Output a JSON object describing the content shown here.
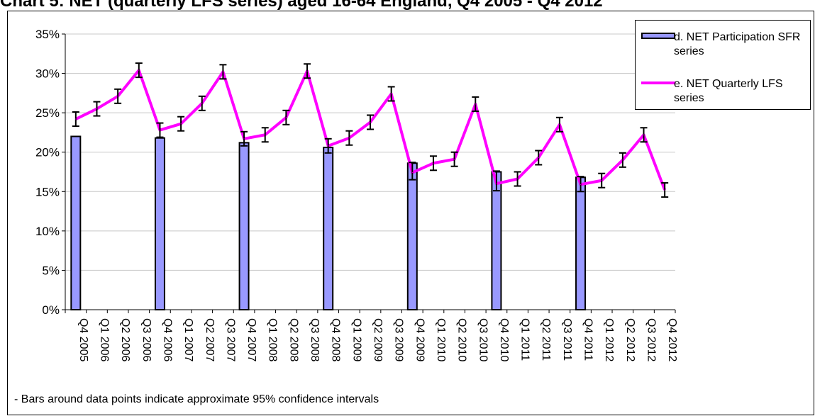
{
  "title": "Chart 5: NET (quarterly LFS series) aged 16-64 England, Q4 2005 - Q4 2012",
  "footnote": "- Bars around data points indicate approximate 95% confidence intervals",
  "legend": {
    "position": "top-right",
    "items": [
      {
        "label": "d. NET Participation SFR series",
        "color": "#9999ff",
        "kind": "bar"
      },
      {
        "label": "e. NET Quarterly LFS series",
        "color": "#ff00ff",
        "kind": "line"
      }
    ]
  },
  "chart_data": {
    "type": "bar",
    "categories": [
      "Q4 2005",
      "Q1 2006",
      "Q2 2006",
      "Q3 2006",
      "Q4 2006",
      "Q1 2007",
      "Q2 2007",
      "Q3 2007",
      "Q4 2007",
      "Q1 2008",
      "Q2 2008",
      "Q3 2008",
      "Q4 2008",
      "Q1 2009",
      "Q2 2009",
      "Q3 2009",
      "Q4 2009",
      "Q1 2010",
      "Q2 2010",
      "Q3 2010",
      "Q4 2010",
      "Q1 2011",
      "Q2 2011",
      "Q3 2011",
      "Q4 2011",
      "Q1 2012",
      "Q2 2012",
      "Q3 2012",
      "Q4 2012"
    ],
    "ylim": [
      0,
      35
    ],
    "yticks": [
      "0%",
      "5%",
      "10%",
      "15%",
      "20%",
      "25%",
      "30%",
      "35%"
    ],
    "y_unit": "%",
    "grid": true,
    "series": [
      {
        "name": "d. NET Participation SFR series",
        "type": "bar",
        "color": "#9999ff",
        "values": [
          22.0,
          null,
          null,
          null,
          21.8,
          null,
          null,
          null,
          21.2,
          null,
          null,
          null,
          20.6,
          null,
          null,
          null,
          18.6,
          null,
          null,
          null,
          17.5,
          null,
          null,
          null,
          16.8,
          null,
          null,
          null,
          null
        ]
      },
      {
        "name": "e. NET Quarterly LFS series",
        "type": "line",
        "color": "#ff00ff",
        "values": [
          24.2,
          25.5,
          27.1,
          30.4,
          22.8,
          23.6,
          26.2,
          30.2,
          21.7,
          22.2,
          24.4,
          30.3,
          20.8,
          21.8,
          23.8,
          27.4,
          17.4,
          18.6,
          19.1,
          26.1,
          16.0,
          16.6,
          19.3,
          23.5,
          15.9,
          16.4,
          19.0,
          22.2,
          15.2
        ],
        "ci_low": [
          23.3,
          24.6,
          26.2,
          29.5,
          21.9,
          22.7,
          25.3,
          29.3,
          20.8,
          21.3,
          23.5,
          29.4,
          19.9,
          20.9,
          22.9,
          26.5,
          16.5,
          17.7,
          18.2,
          25.2,
          15.1,
          15.7,
          18.4,
          22.6,
          15.0,
          15.5,
          18.1,
          21.3,
          14.3
        ],
        "ci_high": [
          25.1,
          26.4,
          28.0,
          31.3,
          23.7,
          24.5,
          27.1,
          31.1,
          22.6,
          23.1,
          25.3,
          31.2,
          21.7,
          22.7,
          24.7,
          28.3,
          18.7,
          19.5,
          20.0,
          27.0,
          17.6,
          17.5,
          20.2,
          24.4,
          16.9,
          17.3,
          19.9,
          23.1,
          16.1
        ]
      }
    ]
  }
}
